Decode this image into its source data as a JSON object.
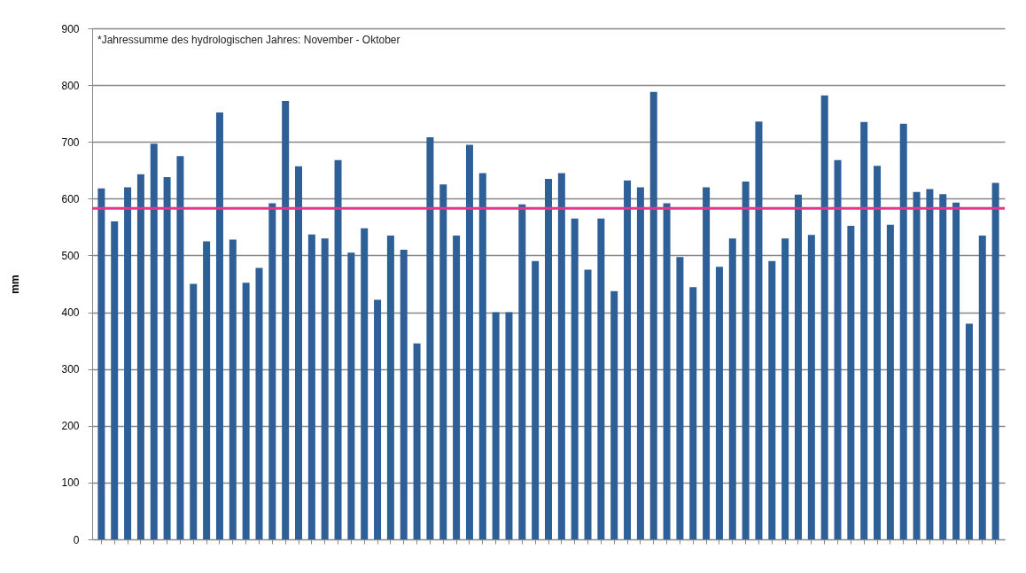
{
  "chart_data": {
    "type": "bar",
    "ylabel": "mm",
    "annotations": [
      "*Jahressumme des hydrologischen Jahres: November  - Oktober"
    ],
    "categories": [
      null,
      null,
      null,
      null,
      null,
      null,
      null,
      null,
      null,
      null,
      null,
      null,
      null,
      null,
      null,
      null,
      null,
      null,
      null,
      null,
      null,
      null,
      null,
      null,
      null,
      null,
      null,
      null,
      null,
      null,
      null,
      null,
      null,
      null,
      null,
      null,
      null,
      null,
      null,
      null,
      null,
      null,
      null,
      null,
      null,
      null,
      null,
      null,
      null,
      null,
      null,
      null,
      null,
      null,
      null,
      null,
      null,
      null,
      null,
      null,
      null,
      null,
      null,
      null,
      null,
      null,
      null,
      null,
      null
    ],
    "values": [
      618,
      560,
      620,
      643,
      697,
      638,
      675,
      450,
      525,
      752,
      528,
      452,
      478,
      592,
      772,
      657,
      537,
      530,
      668,
      505,
      548,
      422,
      535,
      510,
      345,
      708,
      625,
      535,
      695,
      645,
      400,
      400,
      590,
      490,
      635,
      645,
      565,
      475,
      565,
      437,
      632,
      620,
      788,
      592,
      497,
      444,
      620,
      480,
      530,
      630,
      736,
      490,
      530,
      607,
      536,
      782,
      668,
      552,
      735,
      658,
      554,
      732,
      612,
      617,
      608,
      593,
      380,
      535,
      628
    ],
    "color": "#2e5f96",
    "ylim": [
      0,
      900
    ],
    "yticks": [
      0,
      100,
      200,
      300,
      400,
      500,
      600,
      700,
      800,
      900
    ],
    "grid": "y",
    "ref_lines": [
      {
        "axis": "y",
        "value": 583,
        "color": "#e8358c"
      }
    ]
  }
}
